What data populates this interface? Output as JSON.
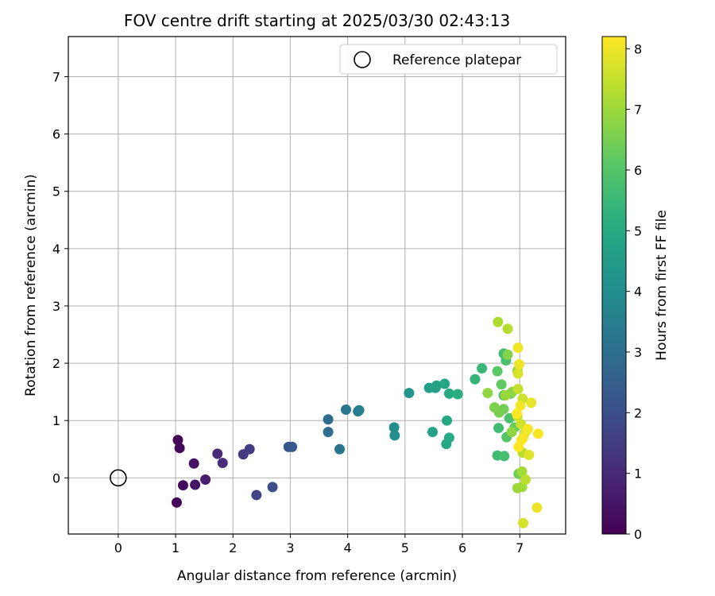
{
  "chart_data": {
    "type": "scatter",
    "title": "FOV centre drift starting at 2025/03/30 02:43:13",
    "xlabel": "Angular distance from reference (arcmin)",
    "ylabel": "Rotation from reference (arcmin)",
    "xlim": [
      -0.87,
      7.8
    ],
    "ylim": [
      -0.98,
      7.7
    ],
    "xticks": [
      0,
      1,
      2,
      3,
      4,
      5,
      6,
      7
    ],
    "yticks": [
      0,
      1,
      2,
      3,
      4,
      5,
      6,
      7
    ],
    "grid": true,
    "legend": {
      "placement": "top-right",
      "entries": [
        "Reference platepar"
      ]
    },
    "colorbar": {
      "label": "Hours from first FF file",
      "colormap": "viridis",
      "range": [
        0,
        8.2
      ],
      "ticks": [
        0,
        1,
        2,
        3,
        4,
        5,
        6,
        7,
        8
      ]
    },
    "reference": {
      "x": 0,
      "y": 0,
      "label": "Reference platepar"
    },
    "points": [
      {
        "x": 1.04,
        "y": 0.66,
        "c": 0.05
      },
      {
        "x": 1.02,
        "y": -0.43,
        "c": 0.1
      },
      {
        "x": 1.07,
        "y": 0.52,
        "c": 0.15
      },
      {
        "x": 1.13,
        "y": -0.13,
        "c": 0.25
      },
      {
        "x": 1.32,
        "y": 0.25,
        "c": 0.4
      },
      {
        "x": 1.34,
        "y": -0.12,
        "c": 0.45
      },
      {
        "x": 1.52,
        "y": -0.03,
        "c": 0.7
      },
      {
        "x": 1.73,
        "y": 0.42,
        "c": 0.95
      },
      {
        "x": 1.82,
        "y": 0.26,
        "c": 1.05
      },
      {
        "x": 2.18,
        "y": 0.41,
        "c": 1.4
      },
      {
        "x": 2.29,
        "y": 0.5,
        "c": 1.5
      },
      {
        "x": 2.41,
        "y": -0.3,
        "c": 1.65
      },
      {
        "x": 2.69,
        "y": -0.16,
        "c": 1.95
      },
      {
        "x": 2.97,
        "y": 0.54,
        "c": 2.25
      },
      {
        "x": 3.03,
        "y": 0.54,
        "c": 2.3
      },
      {
        "x": 3.66,
        "y": 1.02,
        "c": 2.95
      },
      {
        "x": 3.66,
        "y": 0.8,
        "c": 2.97
      },
      {
        "x": 3.86,
        "y": 0.5,
        "c": 3.15
      },
      {
        "x": 3.97,
        "y": 1.19,
        "c": 3.25
      },
      {
        "x": 4.18,
        "y": 1.16,
        "c": 3.45
      },
      {
        "x": 4.2,
        "y": 1.18,
        "c": 3.5
      },
      {
        "x": 4.81,
        "y": 0.88,
        "c": 4.0
      },
      {
        "x": 4.82,
        "y": 0.74,
        "c": 4.05
      },
      {
        "x": 5.07,
        "y": 1.48,
        "c": 4.25
      },
      {
        "x": 5.42,
        "y": 1.57,
        "c": 4.55
      },
      {
        "x": 5.53,
        "y": 1.57,
        "c": 4.65
      },
      {
        "x": 5.55,
        "y": 1.61,
        "c": 4.7
      },
      {
        "x": 5.48,
        "y": 0.8,
        "c": 4.75
      },
      {
        "x": 5.69,
        "y": 1.64,
        "c": 4.85
      },
      {
        "x": 5.73,
        "y": 1.0,
        "c": 4.9
      },
      {
        "x": 5.72,
        "y": 0.59,
        "c": 4.95
      },
      {
        "x": 5.77,
        "y": 1.47,
        "c": 5.0
      },
      {
        "x": 5.77,
        "y": 0.7,
        "c": 5.05
      },
      {
        "x": 5.92,
        "y": 1.46,
        "c": 5.15
      },
      {
        "x": 6.22,
        "y": 1.72,
        "c": 5.4
      },
      {
        "x": 6.34,
        "y": 1.91,
        "c": 5.5
      },
      {
        "x": 6.61,
        "y": 0.39,
        "c": 5.6
      },
      {
        "x": 6.63,
        "y": 0.87,
        "c": 5.65
      },
      {
        "x": 6.72,
        "y": 2.17,
        "c": 5.7
      },
      {
        "x": 6.73,
        "y": 0.38,
        "c": 5.75
      },
      {
        "x": 6.76,
        "y": 2.05,
        "c": 5.8
      },
      {
        "x": 6.82,
        "y": 1.04,
        "c": 5.85
      },
      {
        "x": 6.72,
        "y": 1.44,
        "c": 5.9
      },
      {
        "x": 6.77,
        "y": 0.71,
        "c": 6.0
      },
      {
        "x": 6.61,
        "y": 1.86,
        "c": 6.1
      },
      {
        "x": 6.68,
        "y": 1.63,
        "c": 6.2
      },
      {
        "x": 6.84,
        "y": 1.47,
        "c": 6.25
      },
      {
        "x": 6.91,
        "y": 0.88,
        "c": 6.3
      },
      {
        "x": 6.98,
        "y": 0.07,
        "c": 6.4
      },
      {
        "x": 6.72,
        "y": 1.2,
        "c": 6.45
      },
      {
        "x": 6.64,
        "y": 1.14,
        "c": 6.5
      },
      {
        "x": 6.56,
        "y": 1.23,
        "c": 6.6
      },
      {
        "x": 6.79,
        "y": 2.15,
        "c": 6.7
      },
      {
        "x": 6.87,
        "y": 1.5,
        "c": 6.75
      },
      {
        "x": 6.86,
        "y": 0.8,
        "c": 6.8
      },
      {
        "x": 6.44,
        "y": 1.48,
        "c": 6.85
      },
      {
        "x": 6.96,
        "y": 1.87,
        "c": 6.9
      },
      {
        "x": 6.75,
        "y": 1.44,
        "c": 6.95
      },
      {
        "x": 6.96,
        "y": -0.18,
        "c": 7.0
      },
      {
        "x": 7.04,
        "y": -0.16,
        "c": 7.05
      },
      {
        "x": 7.04,
        "y": 0.11,
        "c": 7.1
      },
      {
        "x": 6.62,
        "y": 2.72,
        "c": 7.2
      },
      {
        "x": 6.79,
        "y": 2.6,
        "c": 7.3
      },
      {
        "x": 7.05,
        "y": 0.44,
        "c": 7.35
      },
      {
        "x": 7.1,
        "y": -0.03,
        "c": 7.4
      },
      {
        "x": 6.97,
        "y": 1.55,
        "c": 7.5
      },
      {
        "x": 6.96,
        "y": 1.08,
        "c": 7.55
      },
      {
        "x": 7.05,
        "y": 1.38,
        "c": 7.6
      },
      {
        "x": 7.02,
        "y": 0.94,
        "c": 7.65
      },
      {
        "x": 7.06,
        "y": -0.79,
        "c": 7.7
      },
      {
        "x": 6.97,
        "y": 1.82,
        "c": 7.75
      },
      {
        "x": 7.1,
        "y": 0.8,
        "c": 7.8
      },
      {
        "x": 7.16,
        "y": 0.4,
        "c": 7.85
      },
      {
        "x": 7.2,
        "y": 1.31,
        "c": 7.9
      },
      {
        "x": 7.3,
        "y": -0.52,
        "c": 7.95
      },
      {
        "x": 6.97,
        "y": 2.27,
        "c": 8.0
      },
      {
        "x": 6.99,
        "y": 1.98,
        "c": 8.02
      },
      {
        "x": 7.01,
        "y": 1.26,
        "c": 8.05
      },
      {
        "x": 7.06,
        "y": 0.7,
        "c": 8.07
      },
      {
        "x": 7.14,
        "y": 0.85,
        "c": 8.1
      },
      {
        "x": 7.32,
        "y": 0.77,
        "c": 8.12
      },
      {
        "x": 7.03,
        "y": 0.66,
        "c": 8.15
      },
      {
        "x": 6.98,
        "y": 0.54,
        "c": 8.17
      },
      {
        "x": 6.95,
        "y": 1.12,
        "c": 8.19
      }
    ]
  }
}
